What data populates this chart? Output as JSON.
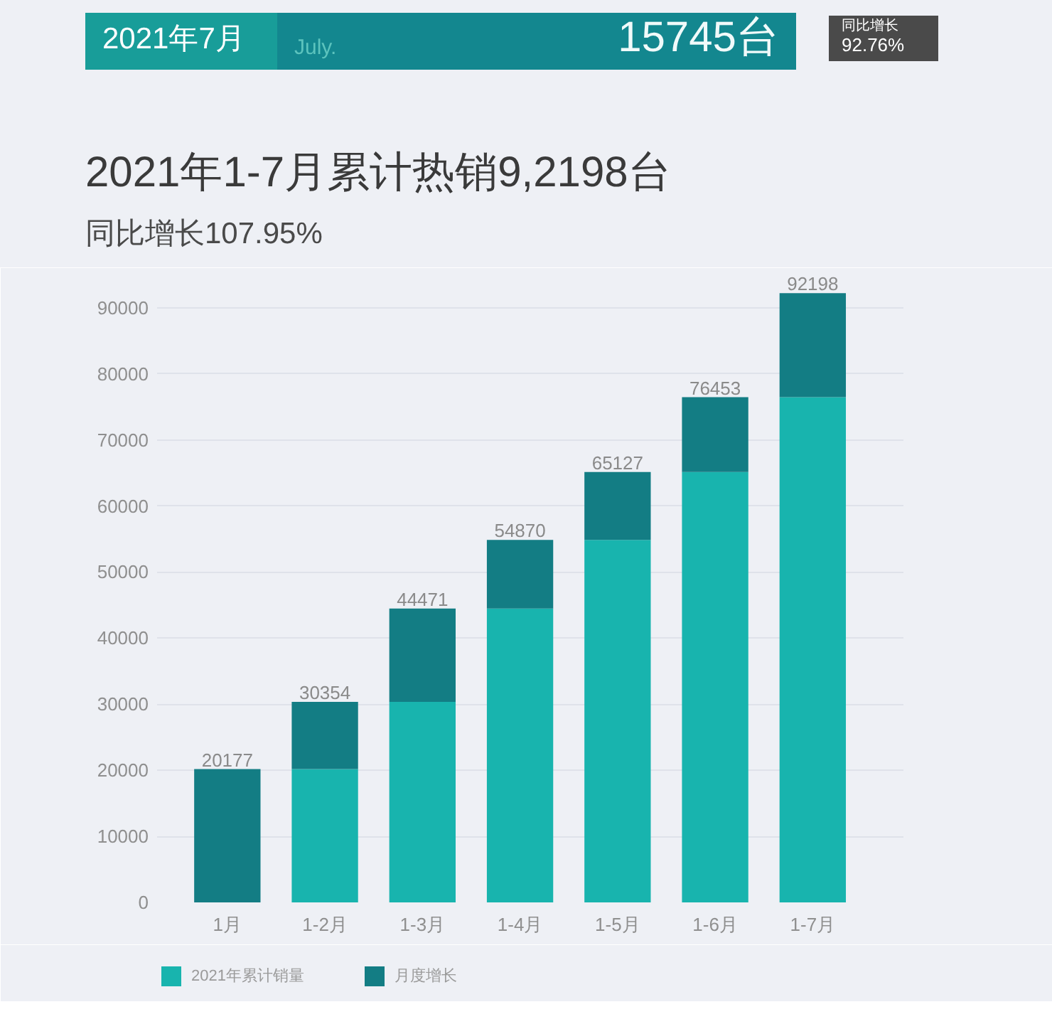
{
  "chart_data": {
    "type": "bar",
    "title": "2021年1-7月累计热销9,2198台",
    "subtitle": "同比增长107.95%",
    "annotations": [
      "2021年7月",
      "July.",
      "15745台",
      "同比增长",
      "92.76%"
    ],
    "categories": [
      "1月",
      "1-2月",
      "1-3月",
      "1-4月",
      "1-5月",
      "1-6月",
      "1-7月"
    ],
    "stacked": true,
    "series": [
      {
        "name": "2021年累计销量",
        "color": "#18b4ae",
        "values": [
          null,
          20177,
          30354,
          44471,
          54870,
          65127,
          76453
        ]
      },
      {
        "name": "月度增长",
        "color": "#137d84",
        "values": [
          20177,
          10177,
          14117,
          10399,
          10257,
          11326,
          15745
        ]
      }
    ],
    "totals": [
      "20177",
      "30354",
      "44471",
      "54870",
      "65127",
      "76453",
      "92198"
    ],
    "ylim": [
      0,
      96000
    ],
    "yticks": [
      0,
      10000,
      20000,
      30000,
      40000,
      50000,
      60000,
      70000,
      80000,
      90000
    ],
    "grid": "y",
    "legend": "bottom"
  }
}
